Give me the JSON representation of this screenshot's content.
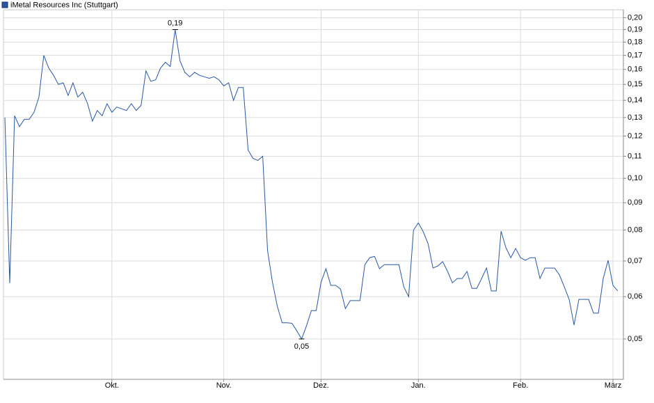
{
  "chart_data": {
    "type": "line",
    "log_y": true,
    "grid": true,
    "legend": "top-left",
    "categories": [
      null,
      null,
      null,
      null,
      null,
      null,
      null,
      null,
      null,
      null,
      null,
      null,
      null,
      null,
      null,
      null,
      null,
      null,
      null,
      null,
      null,
      null,
      "Okt.",
      null,
      null,
      null,
      null,
      null,
      null,
      null,
      null,
      null,
      null,
      null,
      null,
      null,
      null,
      null,
      null,
      null,
      null,
      null,
      null,
      null,
      null,
      "Nov.",
      null,
      null,
      null,
      null,
      null,
      null,
      null,
      null,
      null,
      null,
      null,
      null,
      null,
      null,
      null,
      null,
      null,
      null,
      null,
      "Dez.",
      null,
      null,
      null,
      null,
      null,
      null,
      null,
      null,
      null,
      null,
      null,
      null,
      null,
      null,
      null,
      null,
      null,
      null,
      null,
      "Jan.",
      null,
      null,
      null,
      null,
      null,
      null,
      null,
      null,
      null,
      null,
      null,
      null,
      null,
      null,
      null,
      null,
      null,
      null,
      null,
      null,
      "Feb.",
      null,
      null,
      null,
      null,
      null,
      null,
      null,
      null,
      null,
      null,
      null,
      null,
      null,
      null,
      null,
      null,
      null,
      null,
      "März",
      null
    ],
    "series": [
      {
        "name": "iMetal Resources Inc (Stuttgart)",
        "color": "#2857a4",
        "values": [
          0.13,
          0.0636,
          0.131,
          0.125,
          0.129,
          0.129,
          0.133,
          0.142,
          0.17,
          0.161,
          0.156,
          0.15,
          0.151,
          0.143,
          0.151,
          0.142,
          0.145,
          0.138,
          0.128,
          0.134,
          0.131,
          0.138,
          0.133,
          0.136,
          0.135,
          0.134,
          0.138,
          0.134,
          0.137,
          0.159,
          0.152,
          0.153,
          0.161,
          0.165,
          0.162,
          0.19,
          0.166,
          0.158,
          0.155,
          0.158,
          0.156,
          0.155,
          0.154,
          0.155,
          0.153,
          0.149,
          0.151,
          0.14,
          0.148,
          0.148,
          0.113,
          0.109,
          0.108,
          0.11,
          0.0732,
          0.0639,
          0.0576,
          0.0536,
          0.0536,
          0.0535,
          0.0518,
          0.05,
          0.0529,
          0.0565,
          0.0565,
          0.0639,
          0.0677,
          0.063,
          0.063,
          0.062,
          0.057,
          0.059,
          0.059,
          0.059,
          0.0689,
          0.071,
          0.0714,
          0.0677,
          0.0689,
          0.0689,
          0.0689,
          0.0689,
          0.0626,
          0.06,
          0.08,
          0.0825,
          0.0794,
          0.0754,
          0.0679,
          0.0685,
          0.0698,
          0.0669,
          0.0637,
          0.0649,
          0.0649,
          0.0669,
          0.0622,
          0.0622,
          0.0649,
          0.0679,
          0.0615,
          0.0615,
          0.0796,
          0.0741,
          0.071,
          0.0739,
          0.071,
          0.0702,
          0.071,
          0.071,
          0.0649,
          0.0679,
          0.0679,
          0.0679,
          0.0659,
          0.0626,
          0.0593,
          0.0531,
          0.0593,
          0.0593,
          0.0593,
          0.0559,
          0.0559,
          0.0649,
          0.0702,
          0.063,
          0.0615
        ],
        "value_labels": [
          null,
          null,
          null,
          null,
          null,
          null,
          null,
          null,
          null,
          null,
          null,
          null,
          null,
          null,
          null,
          null,
          null,
          null,
          null,
          null,
          null,
          null,
          null,
          null,
          null,
          null,
          null,
          null,
          null,
          null,
          null,
          null,
          null,
          null,
          null,
          "0,19",
          null,
          null,
          null,
          null,
          null,
          null,
          null,
          null,
          null,
          null,
          null,
          null,
          null,
          null,
          null,
          null,
          null,
          null,
          null,
          null,
          null,
          null,
          null,
          null,
          null,
          "0,05",
          null,
          null,
          null,
          null,
          null,
          null,
          null,
          null,
          null,
          null,
          null,
          null,
          null,
          null,
          null,
          null,
          null,
          null,
          null,
          null,
          null,
          null,
          null,
          null,
          null,
          null,
          null,
          null,
          null,
          null,
          null,
          null,
          null,
          null,
          null,
          null,
          null,
          null,
          null,
          null,
          null,
          null,
          null,
          null,
          null,
          null,
          null,
          null,
          null,
          null,
          null,
          null,
          null,
          null,
          null,
          null,
          null,
          null,
          null,
          null,
          null,
          null,
          null,
          null,
          null
        ]
      }
    ],
    "ylim": [
      0.042,
      0.207
    ],
    "yticks": [
      {
        "value": 0.05,
        "label": "0,05"
      },
      {
        "value": 0.06,
        "label": "0,06"
      },
      {
        "value": 0.07,
        "label": "0,07"
      },
      {
        "value": 0.08,
        "label": "0,08"
      },
      {
        "value": 0.09,
        "label": "0,09"
      },
      {
        "value": 0.1,
        "label": "0,10"
      },
      {
        "value": 0.11,
        "label": "0,11"
      },
      {
        "value": 0.12,
        "label": "0,12"
      },
      {
        "value": 0.13,
        "label": "0,13"
      },
      {
        "value": 0.14,
        "label": "0,14"
      },
      {
        "value": 0.15,
        "label": "0,15"
      },
      {
        "value": 0.16,
        "label": "0,16"
      },
      {
        "value": 0.17,
        "label": "0,17"
      },
      {
        "value": 0.18,
        "label": "0,18"
      },
      {
        "value": 0.19,
        "label": "0,19"
      },
      {
        "value": 0.2,
        "label": "0,20"
      }
    ]
  }
}
